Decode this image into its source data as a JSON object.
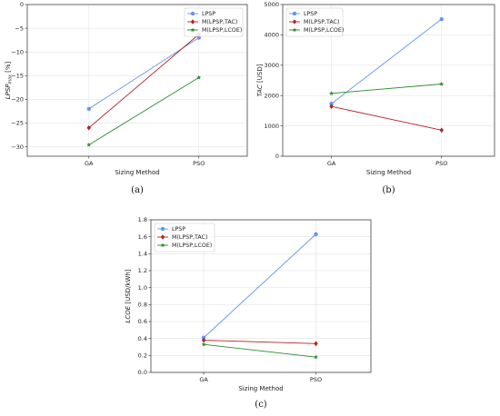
{
  "chart_data": [
    {
      "type": "line",
      "caption": "(a)",
      "categories": [
        "GA",
        "PSO"
      ],
      "xlabel": "Sizing Method",
      "ylabel_main": "LPSP",
      "ylabel_sub": "max",
      "ylabel_unit": "[%]",
      "ylim": [
        -32,
        0
      ],
      "yticks": [
        -30,
        -25,
        -20,
        -15,
        -10,
        -5,
        0
      ],
      "ytick_labels": [
        "−30",
        "−25",
        "−20",
        "−15",
        "−10",
        "−5",
        "0"
      ],
      "legend_position": "top-right",
      "series": [
        {
          "name": "LPSP",
          "color": "#6495ED",
          "marker": "circle",
          "values": [
            -22.0,
            -7.0
          ]
        },
        {
          "name": "M(LPSP,TAC)",
          "color": "#B22222",
          "marker": "diamond",
          "values": [
            -26.0,
            -6.3
          ]
        },
        {
          "name": "M(LPSP,LCOE)",
          "color": "#2E8B2E",
          "marker": "star",
          "values": [
            -29.6,
            -15.4
          ]
        }
      ]
    },
    {
      "type": "line",
      "caption": "(b)",
      "categories": [
        "GA",
        "PSO"
      ],
      "xlabel": "Sizing Method",
      "ylabel_main": "TAC",
      "ylabel_sub": "",
      "ylabel_unit": "[USD]",
      "ylim": [
        0,
        5000
      ],
      "yticks": [
        0,
        1000,
        2000,
        3000,
        4000,
        5000
      ],
      "ytick_labels": [
        "0",
        "1000",
        "2000",
        "3000",
        "4000",
        "5000"
      ],
      "legend_position": "top-left",
      "series": [
        {
          "name": "LPSP",
          "color": "#6495ED",
          "marker": "circle",
          "values": [
            1730,
            4520
          ]
        },
        {
          "name": "M(LPSP,TAC)",
          "color": "#B22222",
          "marker": "diamond",
          "values": [
            1640,
            860
          ]
        },
        {
          "name": "M(LPSP,LCOE)",
          "color": "#2E8B2E",
          "marker": "star",
          "values": [
            2070,
            2380
          ]
        }
      ]
    },
    {
      "type": "line",
      "caption": "(c)",
      "categories": [
        "GA",
        "PSO"
      ],
      "xlabel": "Sizing Method",
      "ylabel_main": "LCOE",
      "ylabel_sub": "",
      "ylabel_unit": "[USD/kWh]",
      "ylim": [
        0,
        1.8
      ],
      "yticks": [
        0,
        0.2,
        0.4,
        0.6,
        0.8,
        1.0,
        1.2,
        1.4,
        1.6,
        1.8
      ],
      "ytick_labels": [
        "0.0",
        "0.2",
        "0.4",
        "0.6",
        "0.8",
        "1.0",
        "1.2",
        "1.4",
        "1.6",
        "1.8"
      ],
      "legend_position": "top-left",
      "series": [
        {
          "name": "LPSP",
          "color": "#6495ED",
          "marker": "circle",
          "values": [
            0.41,
            1.63
          ]
        },
        {
          "name": "M(LPSP,TAC)",
          "color": "#B22222",
          "marker": "diamond",
          "values": [
            0.38,
            0.34
          ]
        },
        {
          "name": "M(LPSP,LCOE)",
          "color": "#2E8B2E",
          "marker": "star",
          "values": [
            0.33,
            0.18
          ]
        }
      ]
    }
  ]
}
